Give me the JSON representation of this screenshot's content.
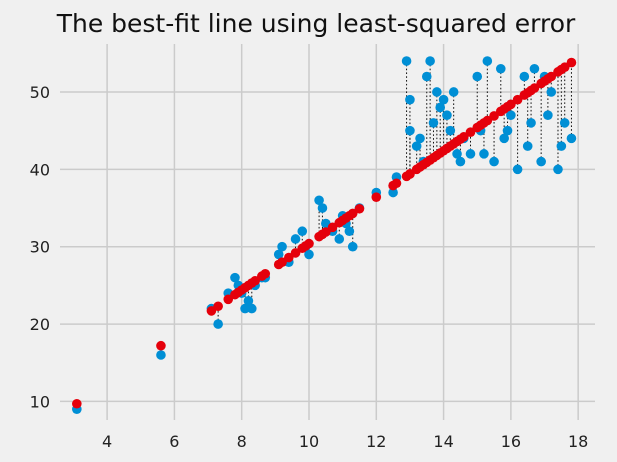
{
  "chart_data": {
    "type": "scatter",
    "title": "The best-fit line using least-squared error",
    "xlabel": "",
    "ylabel": "",
    "xlim": [
      2.6,
      18.5
    ],
    "ylim": [
      7.6,
      56.2
    ],
    "xticks": [
      4,
      6,
      8,
      10,
      12,
      14,
      16,
      18
    ],
    "yticks": [
      10,
      20,
      30,
      40,
      50
    ],
    "grid": true,
    "legend": "none",
    "fit_line": {
      "slope": 3.0,
      "intercept": 0.4
    },
    "colors": {
      "observed": "#008fd5",
      "fitted": "#e5000b",
      "residual": "#111111",
      "background": "#f0f0f0",
      "grid": "#cbcbcb"
    },
    "series": [
      {
        "kind": "observed",
        "x": [
          3.1,
          5.6,
          7.1,
          7.3,
          7.6,
          7.8,
          7.9,
          8.0,
          8.1,
          8.2,
          8.3,
          8.4,
          8.6,
          8.7,
          9.1,
          9.2,
          9.4,
          9.6,
          9.8,
          9.9,
          10.0,
          10.3,
          10.4,
          10.5,
          10.7,
          10.9,
          11.0,
          11.1,
          11.2,
          11.3,
          11.5,
          12.0,
          12.5,
          12.6,
          12.9,
          13.0,
          13.0,
          13.2,
          13.3,
          13.5,
          13.6,
          13.7,
          13.8,
          14.0,
          14.1,
          14.2,
          14.4,
          14.5,
          14.6,
          14.8,
          15.0,
          15.1,
          15.3,
          15.5,
          15.7,
          15.9,
          16.0,
          16.2,
          16.4,
          16.5,
          16.7,
          16.9,
          17.0,
          17.2,
          17.4,
          17.6,
          17.8,
          13.4,
          13.9,
          14.3,
          15.2,
          15.8,
          16.6,
          17.1,
          17.5
        ],
        "y": [
          9,
          16,
          22,
          20,
          24,
          26,
          25,
          24,
          22,
          23,
          22,
          25,
          26,
          26,
          29,
          30,
          28,
          31,
          32,
          30,
          29,
          36,
          35,
          33,
          32,
          31,
          34,
          33,
          32,
          30,
          35,
          37,
          37,
          39,
          54,
          49,
          45,
          43,
          44,
          52,
          54,
          46,
          50,
          49,
          47,
          45,
          42,
          41,
          44,
          42,
          52,
          45,
          54,
          41,
          53,
          45,
          47,
          40,
          52,
          43,
          53,
          41,
          52,
          50,
          40,
          46,
          44,
          41,
          48,
          50,
          42,
          44,
          46,
          47,
          43
        ]
      },
      {
        "kind": "fitted",
        "x": [
          3.1,
          5.6,
          7.1,
          7.3,
          7.6,
          7.8,
          7.9,
          8.0,
          8.1,
          8.2,
          8.3,
          8.4,
          8.6,
          8.7,
          9.1,
          9.2,
          9.4,
          9.6,
          9.8,
          9.9,
          10.0,
          10.3,
          10.4,
          10.5,
          10.7,
          10.9,
          11.0,
          11.1,
          11.2,
          11.3,
          11.5,
          12.0,
          12.5,
          12.6,
          12.9,
          13.0,
          13.0,
          13.2,
          13.3,
          13.5,
          13.6,
          13.7,
          13.8,
          14.0,
          14.1,
          14.2,
          14.4,
          14.5,
          14.6,
          14.8,
          15.0,
          15.1,
          15.3,
          15.5,
          15.7,
          15.9,
          16.0,
          16.2,
          16.4,
          16.5,
          16.7,
          16.9,
          17.0,
          17.2,
          17.4,
          17.6,
          17.8,
          13.4,
          13.9,
          14.3,
          15.2,
          15.8,
          16.6,
          17.1,
          17.5
        ],
        "y": [
          9.7,
          17.2,
          21.7,
          22.3,
          23.2,
          23.8,
          24.1,
          24.4,
          24.7,
          25.0,
          25.3,
          25.6,
          26.2,
          26.5,
          27.7,
          28.0,
          28.6,
          29.2,
          29.8,
          30.1,
          30.4,
          31.3,
          31.6,
          31.9,
          32.5,
          33.1,
          33.4,
          33.7,
          34.0,
          34.3,
          34.9,
          36.4,
          37.9,
          38.2,
          39.1,
          39.4,
          39.4,
          40.0,
          40.3,
          40.9,
          41.2,
          41.5,
          41.8,
          42.4,
          42.7,
          43.0,
          43.6,
          43.9,
          44.2,
          44.8,
          45.4,
          45.7,
          46.3,
          46.9,
          47.5,
          48.1,
          48.4,
          49.0,
          49.6,
          49.9,
          50.5,
          51.1,
          51.4,
          52.0,
          52.6,
          53.2,
          53.8,
          40.6,
          42.1,
          43.3,
          46.0,
          47.8,
          50.2,
          51.7,
          52.9
        ]
      }
    ]
  }
}
